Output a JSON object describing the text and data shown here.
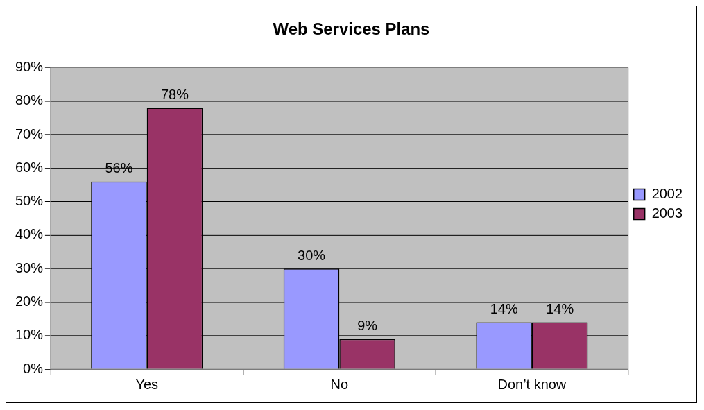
{
  "chart_data": {
    "type": "bar",
    "title": "Web Services Plans",
    "categories": [
      "Yes",
      "No",
      "Don’t know"
    ],
    "series": [
      {
        "name": "2002",
        "color": "#9999ff",
        "values": [
          56,
          30,
          14
        ],
        "value_labels": [
          "56%",
          "30%",
          "14%"
        ]
      },
      {
        "name": "2003",
        "color": "#993366",
        "values": [
          78,
          9,
          14
        ],
        "value_labels": [
          "78%",
          "9%",
          "14%"
        ]
      }
    ],
    "ylim": [
      0,
      90
    ],
    "yticks": [
      {
        "value": 0,
        "label": "0%"
      },
      {
        "value": 10,
        "label": "10%"
      },
      {
        "value": 20,
        "label": "20%"
      },
      {
        "value": 30,
        "label": "30%"
      },
      {
        "value": 40,
        "label": "40%"
      },
      {
        "value": 50,
        "label": "50%"
      },
      {
        "value": 60,
        "label": "60%"
      },
      {
        "value": 70,
        "label": "70%"
      },
      {
        "value": 80,
        "label": "80%"
      },
      {
        "value": 90,
        "label": "90%"
      }
    ],
    "grid": "y",
    "legend": "right"
  }
}
